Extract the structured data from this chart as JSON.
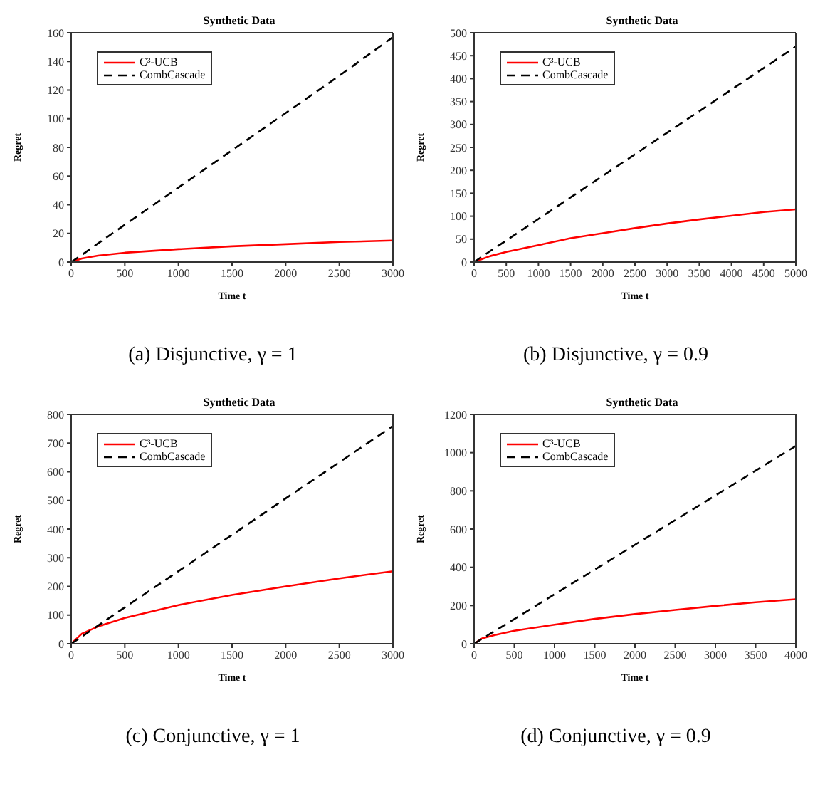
{
  "chart_data": [
    {
      "type": "line",
      "title": "Synthetic Data",
      "xlabel": "Time t",
      "ylabel": "Regret",
      "annotations": [
        "(a) Disjunctive, γ = 1"
      ],
      "legend": "top left",
      "marker": "none",
      "grid": false,
      "x": [
        0,
        100,
        250,
        500,
        1000,
        1500,
        2000,
        2500,
        3000
      ],
      "xlim": [
        0,
        3000
      ],
      "xticks": [
        0,
        500,
        1000,
        1500,
        2000,
        2500,
        3000
      ],
      "ylim": [
        0,
        160
      ],
      "yticks": [
        0,
        20,
        40,
        60,
        80,
        100,
        120,
        140,
        160
      ],
      "series": [
        {
          "name": "C³-UCB",
          "color": "#ff0000",
          "line_style": "solid",
          "values": [
            0,
            2.5,
            4.5,
            6.5,
            9,
            11,
            12.5,
            14,
            15
          ]
        },
        {
          "name": "CombCascade",
          "color": "#000000",
          "line_style": "dashed",
          "values": [
            0,
            5,
            13,
            26,
            52,
            78,
            104,
            130,
            157
          ]
        }
      ]
    },
    {
      "type": "line",
      "title": "Synthetic Data",
      "xlabel": "Time t",
      "ylabel": "Regret",
      "annotations": [
        "(b) Disjunctive, γ = 0.9"
      ],
      "legend": "top left",
      "marker": "none",
      "grid": false,
      "x": [
        0,
        250,
        500,
        1000,
        1500,
        2000,
        2500,
        3000,
        3500,
        4000,
        4500,
        5000
      ],
      "xlim": [
        0,
        5000
      ],
      "xticks": [
        0,
        500,
        1000,
        1500,
        2000,
        2500,
        3000,
        3500,
        4000,
        4500,
        5000
      ],
      "ylim": [
        0,
        500
      ],
      "yticks": [
        0,
        50,
        100,
        150,
        200,
        250,
        300,
        350,
        400,
        450,
        500
      ],
      "series": [
        {
          "name": "C³-UCB",
          "color": "#ff0000",
          "line_style": "solid",
          "values": [
            0,
            13,
            22,
            37,
            52,
            63,
            74,
            84,
            93,
            101,
            109,
            115
          ]
        },
        {
          "name": "CombCascade",
          "color": "#000000",
          "line_style": "dashed",
          "values": [
            0,
            24,
            47,
            94,
            141,
            188,
            235,
            282,
            329,
            376,
            423,
            470
          ]
        }
      ]
    },
    {
      "type": "line",
      "title": "Synthetic Data",
      "xlabel": "Time t",
      "ylabel": "Regret",
      "annotations": [
        "(c) Conjunctive, γ = 1"
      ],
      "legend": "top left",
      "marker": "none",
      "grid": false,
      "x": [
        0,
        100,
        250,
        500,
        1000,
        1500,
        2000,
        2500,
        3000
      ],
      "xlim": [
        0,
        3000
      ],
      "xticks": [
        0,
        500,
        1000,
        1500,
        2000,
        2500,
        3000
      ],
      "ylim": [
        0,
        800
      ],
      "yticks": [
        0,
        100,
        200,
        300,
        400,
        500,
        600,
        700,
        800
      ],
      "series": [
        {
          "name": "C³-UCB",
          "color": "#ff0000",
          "line_style": "solid",
          "values": [
            0,
            35,
            60,
            90,
            135,
            170,
            200,
            228,
            253
          ]
        },
        {
          "name": "CombCascade",
          "color": "#000000",
          "line_style": "dashed",
          "values": [
            0,
            25,
            63,
            127,
            253,
            380,
            507,
            633,
            760
          ]
        }
      ]
    },
    {
      "type": "line",
      "title": "Synthetic Data",
      "xlabel": "Time t",
      "ylabel": "Regret",
      "annotations": [
        "(d) Conjunctive, γ = 0.9"
      ],
      "legend": "top left",
      "marker": "none",
      "grid": false,
      "x": [
        0,
        100,
        250,
        500,
        1000,
        1500,
        2000,
        2500,
        3000,
        3500,
        4000
      ],
      "xlim": [
        0,
        4000
      ],
      "xticks": [
        0,
        500,
        1000,
        1500,
        2000,
        2500,
        3000,
        3500,
        4000
      ],
      "ylim": [
        0,
        1200
      ],
      "yticks": [
        0,
        200,
        400,
        600,
        800,
        1000,
        1200
      ],
      "series": [
        {
          "name": "C³-UCB",
          "color": "#ff0000",
          "line_style": "solid",
          "values": [
            0,
            28,
            45,
            68,
            100,
            130,
            155,
            177,
            198,
            217,
            233
          ]
        },
        {
          "name": "CombCascade",
          "color": "#000000",
          "line_style": "dashed",
          "values": [
            0,
            26,
            65,
            129,
            259,
            388,
            518,
            647,
            776,
            906,
            1035
          ]
        }
      ]
    }
  ]
}
